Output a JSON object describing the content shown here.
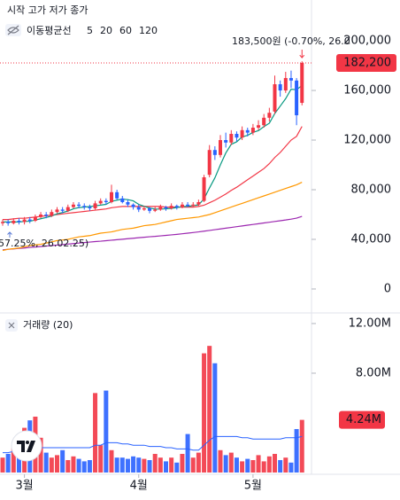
{
  "chart_data": {
    "type": "candlestick",
    "legend_ohlc": "시작 고가 저가 종가",
    "ma_label": "이동평균선",
    "categories": [
      null,
      null,
      null,
      null,
      "3월",
      null,
      null,
      null,
      null,
      null,
      null,
      null,
      null,
      null,
      null,
      null,
      null,
      null,
      null,
      null,
      null,
      null,
      null,
      null,
      null,
      "4월",
      null,
      null,
      null,
      null,
      null,
      null,
      null,
      null,
      null,
      null,
      null,
      null,
      null,
      null,
      null,
      null,
      null,
      null,
      null,
      null,
      "5월",
      null,
      null,
      null,
      null,
      null,
      null,
      null,
      null,
      null
    ],
    "open": [
      53000,
      54000,
      53000,
      55000,
      54000,
      56000,
      55000,
      58000,
      60000,
      59000,
      62000,
      64000,
      63000,
      66000,
      68000,
      67000,
      66000,
      65000,
      69000,
      71000,
      70000,
      78000,
      73000,
      70000,
      68000,
      66000,
      64000,
      65000,
      63000,
      64000,
      66000,
      65000,
      67000,
      66000,
      68000,
      67000,
      68000,
      71000,
      92000,
      112000,
      108000,
      120000,
      118000,
      125000,
      122000,
      128000,
      126000,
      130000,
      132000,
      138000,
      143000,
      165000,
      160000,
      170000,
      168000,
      150000
    ],
    "high": [
      56000,
      56000,
      57000,
      57000,
      58000,
      58000,
      60000,
      62000,
      62000,
      64000,
      66000,
      66000,
      68000,
      70000,
      70000,
      69000,
      68000,
      71000,
      73000,
      73000,
      84000,
      80000,
      75000,
      72000,
      69000,
      68000,
      67000,
      66000,
      66000,
      68000,
      67000,
      69000,
      68000,
      70000,
      70000,
      70000,
      72000,
      92000,
      116000,
      115000,
      124000,
      126000,
      128000,
      127000,
      131000,
      130000,
      133000,
      136000,
      141000,
      146000,
      172000,
      168000,
      175000,
      176000,
      170000,
      183500
    ],
    "low": [
      51000,
      51000,
      52000,
      52000,
      52000,
      53000,
      54000,
      57000,
      57000,
      58000,
      61000,
      61000,
      62000,
      65000,
      65000,
      64000,
      63000,
      64000,
      68000,
      68000,
      69000,
      72000,
      69000,
      66000,
      64000,
      62000,
      63000,
      61000,
      62000,
      63000,
      63000,
      64000,
      64000,
      65000,
      66000,
      66000,
      67000,
      70000,
      90000,
      104000,
      106000,
      114000,
      116000,
      119000,
      120000,
      123000,
      124000,
      128000,
      130000,
      135000,
      141000,
      155000,
      158000,
      162000,
      132000,
      148000
    ],
    "close": [
      54000,
      53000,
      55000,
      54000,
      56000,
      55000,
      58000,
      60000,
      59000,
      62000,
      64000,
      63000,
      66000,
      68000,
      67000,
      66000,
      65000,
      69000,
      71000,
      70000,
      78000,
      73000,
      70000,
      68000,
      66000,
      64000,
      65000,
      63000,
      64000,
      66000,
      65000,
      67000,
      66000,
      68000,
      67000,
      68000,
      70000,
      90000,
      112000,
      108000,
      120000,
      118000,
      125000,
      122000,
      128000,
      126000,
      130000,
      132000,
      138000,
      142000,
      165000,
      160000,
      170000,
      168000,
      140000,
      182200
    ],
    "up_color": "#f23645",
    "down_color": "#2962ff",
    "ylim": [
      -18600,
      232900
    ],
    "yticks": [
      {
        "value": 200000,
        "label": "200,000"
      },
      {
        "value": 160000,
        "label": "160,000"
      },
      {
        "value": 120000,
        "label": "120,000"
      },
      {
        "value": 80000,
        "label": "80,000"
      },
      {
        "value": 40000,
        "label": "40,000"
      },
      0
    ],
    "price_label": "182,200",
    "annotations": [
      "183,500원 (-0.70%, 26.0",
      "57.25%, 26.02.25)"
    ],
    "ma_series": [
      {
        "name": "5",
        "color": "#089981",
        "values": [
          54000,
          54000,
          54000,
          54000,
          54400,
          54600,
          55600,
          56600,
          57600,
          58800,
          60600,
          61600,
          62800,
          64600,
          65600,
          66000,
          66400,
          67000,
          67600,
          68200,
          70600,
          71600,
          72400,
          72000,
          71000,
          68200,
          66600,
          65200,
          64400,
          64400,
          64600,
          65000,
          65600,
          66400,
          66600,
          67200,
          67800,
          72600,
          81400,
          89600,
          100000,
          109600,
          116600,
          118600,
          122600,
          123800,
          126200,
          127600,
          130800,
          133600,
          141400,
          147400,
          153400,
          161000,
          160600,
          164000
        ]
      },
      {
        "name": "20",
        "color": "#f23645",
        "values": [
          56000,
          56000,
          56500,
          57000,
          57000,
          57500,
          58000,
          58500,
          59000,
          59500,
          60000,
          60500,
          61000,
          61500,
          62000,
          62500,
          63000,
          63500,
          64000,
          64500,
          65500,
          66000,
          66500,
          66500,
          66500,
          66500,
          66500,
          66500,
          66500,
          66500,
          66000,
          66000,
          66000,
          66000,
          66000,
          66000,
          66500,
          67500,
          69500,
          71500,
          74000,
          76500,
          79500,
          82000,
          85000,
          88000,
          91000,
          94000,
          97000,
          101000,
          106000,
          110000,
          115000,
          120000,
          123000,
          131000
        ]
      },
      {
        "name": "60",
        "color": "#ff9800",
        "values": [
          31000,
          32000,
          32500,
          33000,
          34000,
          35000,
          35500,
          36000,
          37000,
          38000,
          39000,
          39500,
          40000,
          41000,
          42000,
          42500,
          43000,
          44000,
          45000,
          45500,
          46000,
          47000,
          48000,
          48500,
          49000,
          50000,
          51000,
          51500,
          52000,
          53000,
          54000,
          55000,
          56000,
          56500,
          57000,
          57500,
          58000,
          59000,
          60000,
          61500,
          63000,
          64500,
          66000,
          67500,
          69000,
          70500,
          72000,
          73500,
          75000,
          76500,
          78000,
          79500,
          81000,
          82500,
          84000,
          86000
        ]
      },
      {
        "name": "120",
        "color": "#9c27b0",
        "values": [
          31500,
          32000,
          32300,
          32700,
          33000,
          33500,
          33800,
          34200,
          34600,
          35000,
          35400,
          35800,
          36200,
          36600,
          37000,
          37400,
          37800,
          38200,
          38500,
          38900,
          39300,
          39700,
          40100,
          40500,
          40900,
          41300,
          41700,
          42100,
          42400,
          42800,
          43200,
          43600,
          44000,
          44500,
          45000,
          45500,
          46000,
          46600,
          47200,
          47800,
          48400,
          49000,
          49600,
          50200,
          50800,
          51400,
          52000,
          52600,
          53200,
          53800,
          54400,
          55000,
          55600,
          56300,
          57100,
          58500
        ]
      }
    ],
    "volume": {
      "title": "거래량 (20)",
      "values": [
        1200000,
        1500000,
        2000000,
        2500000,
        3600000,
        4200000,
        4500000,
        2800000,
        1600000,
        1200000,
        1400000,
        1800000,
        1000000,
        1300000,
        1100000,
        900000,
        1000000,
        6400000,
        2200000,
        6600000,
        1800000,
        1200000,
        1200000,
        1100000,
        1300000,
        1200000,
        1100000,
        1000000,
        1500000,
        1200000,
        900000,
        1200000,
        800000,
        1500000,
        3100000,
        1200000,
        1600000,
        9600000,
        10200000,
        8800000,
        1800000,
        1400000,
        1600000,
        1200000,
        900000,
        1100000,
        1000000,
        1400000,
        900000,
        1300000,
        1500000,
        1000000,
        1200000,
        800000,
        3500000,
        4240000
      ],
      "ma_values": [
        1600000,
        1600000,
        1700000,
        1700000,
        1800000,
        1900000,
        2000000,
        2000000,
        2000000,
        2000000,
        2000000,
        2000000,
        2000000,
        2000000,
        2000000,
        2000000,
        2000000,
        2200000,
        2200000,
        2400000,
        2400000,
        2400000,
        2300000,
        2300000,
        2200000,
        2200000,
        2200000,
        2100000,
        2100000,
        2100000,
        2000000,
        2000000,
        1900000,
        1900000,
        1900000,
        1800000,
        1800000,
        2200000,
        2600000,
        2900000,
        2900000,
        2900000,
        2900000,
        2900000,
        2800000,
        2800000,
        2700000,
        2700000,
        2700000,
        2700000,
        2700000,
        2700000,
        2800000,
        2800000,
        2800000,
        2900000
      ],
      "ma_color": "#2962ff",
      "ylim": [
        0,
        12710000
      ],
      "yticks": [
        {
          "value": 12000000,
          "label": "12.00M"
        },
        {
          "value": 8000000,
          "label": "8.00M"
        }
      ],
      "value_label": "4.24M"
    }
  }
}
